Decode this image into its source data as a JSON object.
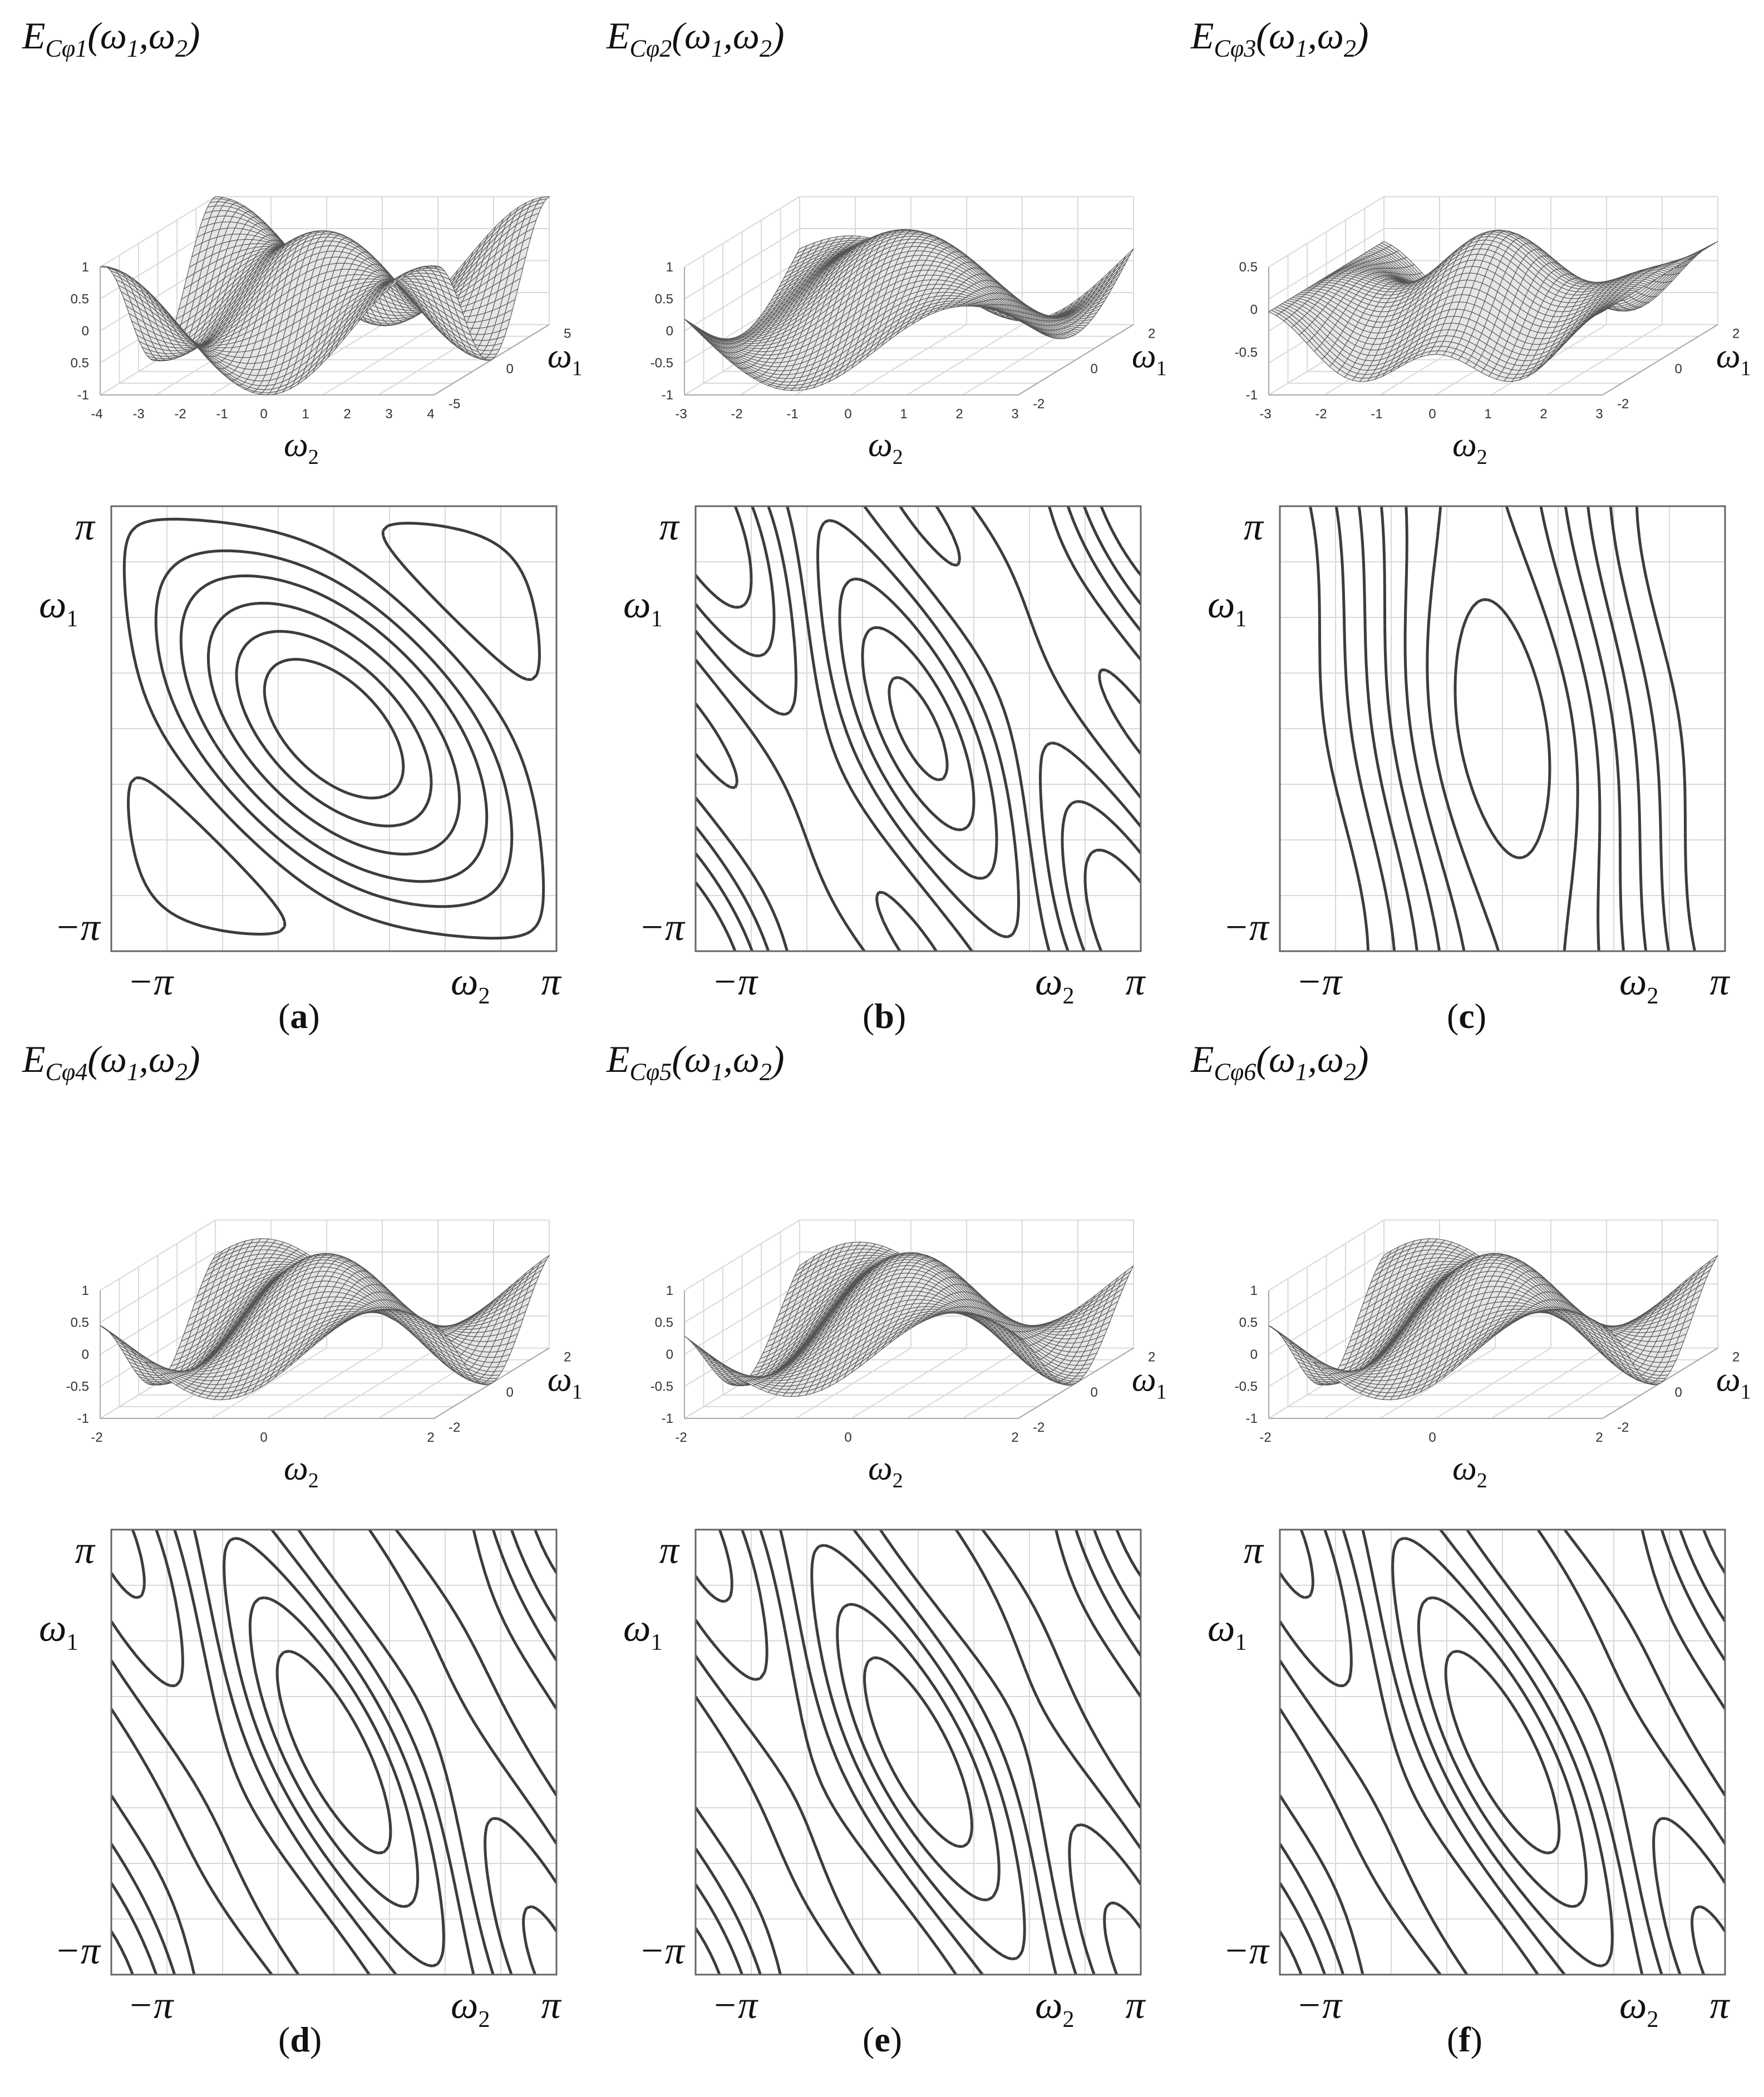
{
  "panels": [
    {
      "id": "a",
      "caption": "a",
      "surface_title": {
        "prefix": "E",
        "sub": "Cφ1",
        "args": "(ω",
        "a1": "1",
        "mid": ",ω",
        "a2": "2",
        "end": ")"
      },
      "z_ticks": [
        "1",
        "0.5",
        "0",
        "0.5",
        "-1"
      ],
      "front_ticks": [
        "-4",
        "-3",
        "-2",
        "-1",
        "0",
        "1",
        "2",
        "3",
        "4"
      ],
      "side_ticks": [
        "5",
        "0",
        "-5"
      ],
      "front_label": {
        "sym": "ω",
        "sub": "2"
      },
      "side_label": {
        "sym": "ω",
        "sub": "1"
      },
      "contour": {
        "top": "π",
        "bottom": "−π",
        "left": "−π",
        "right": "π",
        "y_label": "ω",
        "y_sub": "1",
        "x_label": "ω",
        "x_sub": "2"
      }
    },
    {
      "id": "b",
      "caption": "b",
      "surface_title": {
        "prefix": "E",
        "sub": "Cφ2",
        "args": "(ω",
        "a1": "1",
        "mid": ",ω",
        "a2": "2",
        "end": ")"
      },
      "z_ticks": [
        "1",
        "0.5",
        "0",
        "-0.5",
        "-1"
      ],
      "front_ticks": [
        "-3",
        "-2",
        "-1",
        "0",
        "1",
        "2",
        "3"
      ],
      "side_ticks": [
        "2",
        "0",
        "-2"
      ],
      "front_label": {
        "sym": "ω",
        "sub": "2"
      },
      "side_label": {
        "sym": "ω",
        "sub": "1"
      },
      "contour": {
        "top": "π",
        "bottom": "−π",
        "left": "−π",
        "right": "π",
        "y_label": "ω",
        "y_sub": "1",
        "x_label": "ω",
        "x_sub": "2"
      }
    },
    {
      "id": "c",
      "caption": "c",
      "surface_title": {
        "prefix": "E",
        "sub": "Cφ3",
        "args": "(ω",
        "a1": "1",
        "mid": ",ω",
        "a2": "2",
        "end": ")"
      },
      "z_ticks": [
        "0.5",
        "0",
        "-0.5",
        "-1"
      ],
      "front_ticks": [
        "-3",
        "-2",
        "-1",
        "0",
        "1",
        "2",
        "3"
      ],
      "side_ticks": [
        "2",
        "0",
        "-2"
      ],
      "front_label": {
        "sym": "ω",
        "sub": "2"
      },
      "side_label": {
        "sym": "ω",
        "sub": "1"
      },
      "contour": {
        "top": "π",
        "bottom": "−π",
        "left": "−π",
        "right": "π",
        "y_label": "ω",
        "y_sub": "1",
        "x_label": "ω",
        "x_sub": "2"
      }
    },
    {
      "id": "d",
      "caption": "d",
      "surface_title": {
        "prefix": "E",
        "sub": "Cφ4",
        "args": "(ω",
        "a1": "1",
        "mid": ",ω",
        "a2": "2",
        "end": ")"
      },
      "z_ticks": [
        "1",
        "0.5",
        "0",
        "-0.5",
        "-1"
      ],
      "front_ticks": [
        "-2",
        "0",
        "2"
      ],
      "side_ticks": [
        "2",
        "0",
        "-2"
      ],
      "front_label": {
        "sym": "ω",
        "sub": "2"
      },
      "side_label": {
        "sym": "ω",
        "sub": "1"
      },
      "contour": {
        "top": "π",
        "bottom": "−π",
        "left": "−π",
        "right": "π",
        "y_label": "ω",
        "y_sub": "1",
        "x_label": "ω",
        "x_sub": "2"
      }
    },
    {
      "id": "e",
      "caption": "e",
      "surface_title": {
        "prefix": "E",
        "sub": "Cφ5",
        "args": "(ω",
        "a1": "1",
        "mid": ",ω",
        "a2": "2",
        "end": ")"
      },
      "z_ticks": [
        "1",
        "0.5",
        "0",
        "-0.5",
        "-1"
      ],
      "front_ticks": [
        "-2",
        "0",
        "2"
      ],
      "side_ticks": [
        "2",
        "0",
        "-2"
      ],
      "front_label": {
        "sym": "ω",
        "sub": "2"
      },
      "side_label": {
        "sym": "ω",
        "sub": "1"
      },
      "contour": {
        "top": "π",
        "bottom": "−π",
        "left": "−π",
        "right": "π",
        "y_label": "ω",
        "y_sub": "1",
        "x_label": "ω",
        "x_sub": "2"
      }
    },
    {
      "id": "f",
      "caption": "f",
      "surface_title": {
        "prefix": "E",
        "sub": "Cφ6",
        "args": "(ω",
        "a1": "1",
        "mid": ",ω",
        "a2": "2",
        "end": ")"
      },
      "z_ticks": [
        "1",
        "0.5",
        "0",
        "-0.5",
        "-1"
      ],
      "front_ticks": [
        "-2",
        "0",
        "2"
      ],
      "side_ticks": [
        "2",
        "0",
        "-2"
      ],
      "front_label": {
        "sym": "ω",
        "sub": "2"
      },
      "side_label": {
        "sym": "ω",
        "sub": "1"
      },
      "contour": {
        "top": "π",
        "bottom": "−π",
        "left": "−π",
        "right": "π",
        "y_label": "ω",
        "y_sub": "1",
        "x_label": "ω",
        "x_sub": "2"
      }
    }
  ]
}
